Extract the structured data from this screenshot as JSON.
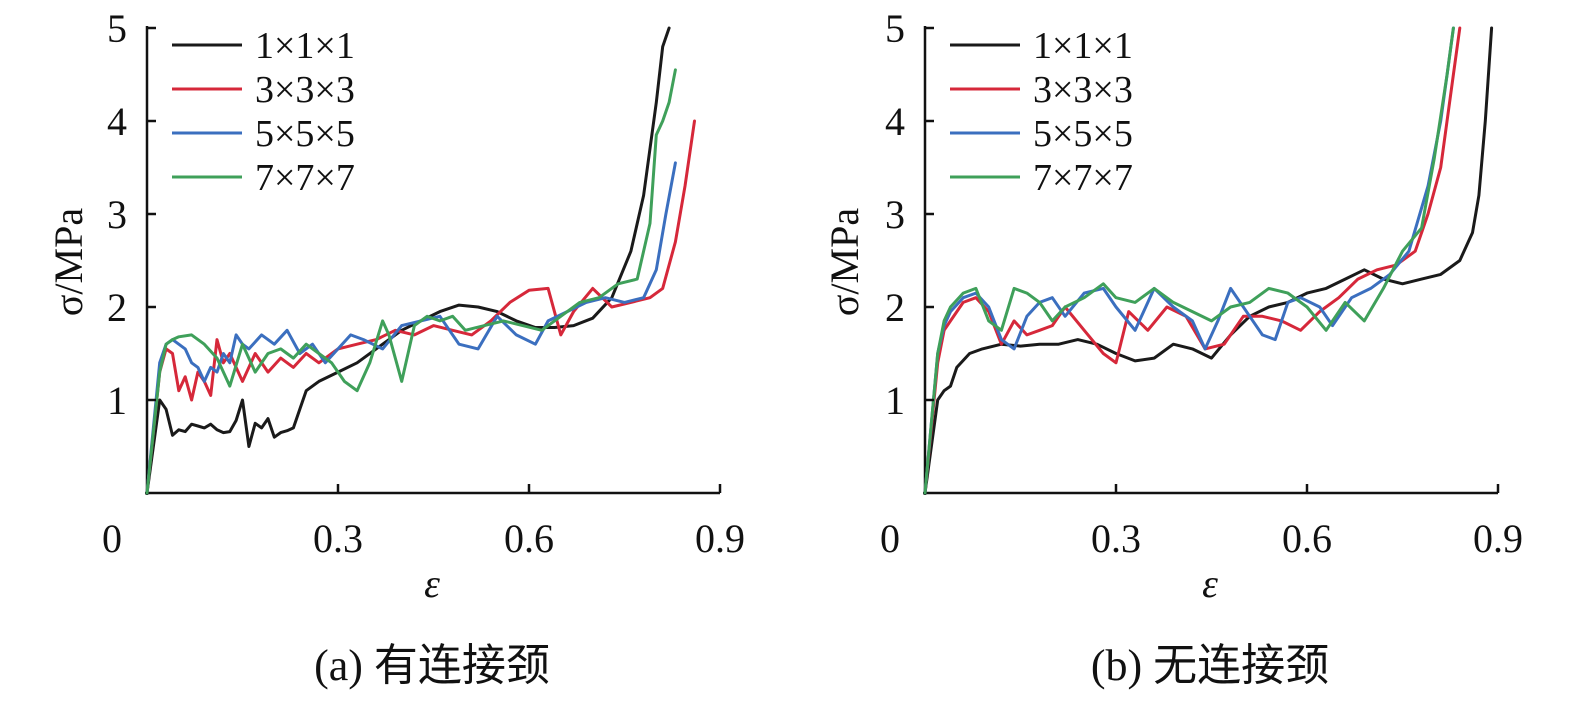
{
  "chart_data": [
    {
      "type": "line",
      "caption": "(a) 有连接颈",
      "xlabel": "ε",
      "ylabel": "σ/MPa",
      "xlim": [
        0,
        0.9
      ],
      "ylim": [
        0,
        5
      ],
      "x_ticks": [
        "0",
        "0.3",
        "0.6",
        "0.9"
      ],
      "y_ticks": [
        "1",
        "2",
        "3",
        "4",
        "5"
      ],
      "legend_position": "top-left",
      "series": [
        {
          "name": "1×1×1",
          "color": "#1a1a1a",
          "x": [
            0,
            0.02,
            0.03,
            0.04,
            0.05,
            0.06,
            0.07,
            0.08,
            0.09,
            0.1,
            0.11,
            0.12,
            0.13,
            0.14,
            0.15,
            0.16,
            0.17,
            0.18,
            0.19,
            0.2,
            0.21,
            0.22,
            0.23,
            0.24,
            0.25,
            0.27,
            0.3,
            0.33,
            0.37,
            0.4,
            0.43,
            0.46,
            0.49,
            0.52,
            0.55,
            0.58,
            0.61,
            0.64,
            0.67,
            0.7,
            0.73,
            0.76,
            0.78,
            0.8,
            0.81,
            0.82
          ],
          "y": [
            0,
            1.0,
            0.9,
            0.62,
            0.68,
            0.66,
            0.74,
            0.72,
            0.7,
            0.74,
            0.68,
            0.65,
            0.66,
            0.78,
            1.0,
            0.5,
            0.75,
            0.7,
            0.8,
            0.6,
            0.65,
            0.67,
            0.7,
            0.9,
            1.1,
            1.2,
            1.3,
            1.4,
            1.6,
            1.75,
            1.85,
            1.95,
            2.02,
            2.0,
            1.95,
            1.85,
            1.78,
            1.78,
            1.8,
            1.88,
            2.1,
            2.6,
            3.2,
            4.2,
            4.8,
            5.0
          ]
        },
        {
          "name": "3×3×3",
          "color": "#d6283a",
          "x": [
            0,
            0.02,
            0.03,
            0.04,
            0.05,
            0.06,
            0.07,
            0.08,
            0.09,
            0.1,
            0.11,
            0.12,
            0.13,
            0.14,
            0.15,
            0.17,
            0.19,
            0.21,
            0.23,
            0.25,
            0.27,
            0.3,
            0.33,
            0.36,
            0.39,
            0.42,
            0.45,
            0.48,
            0.51,
            0.54,
            0.57,
            0.6,
            0.63,
            0.65,
            0.67,
            0.7,
            0.73,
            0.76,
            0.79,
            0.81,
            0.83,
            0.845,
            0.86
          ],
          "y": [
            0,
            1.3,
            1.55,
            1.5,
            1.1,
            1.25,
            1.0,
            1.3,
            1.2,
            1.05,
            1.65,
            1.4,
            1.5,
            1.35,
            1.2,
            1.5,
            1.3,
            1.45,
            1.35,
            1.5,
            1.4,
            1.55,
            1.6,
            1.65,
            1.75,
            1.7,
            1.8,
            1.75,
            1.7,
            1.85,
            2.05,
            2.18,
            2.2,
            1.7,
            1.95,
            2.2,
            2.0,
            2.05,
            2.1,
            2.2,
            2.7,
            3.3,
            4.0
          ]
        },
        {
          "name": "5×5×5",
          "color": "#3b6fbf",
          "x": [
            0,
            0.02,
            0.03,
            0.04,
            0.05,
            0.06,
            0.07,
            0.08,
            0.09,
            0.1,
            0.11,
            0.12,
            0.13,
            0.14,
            0.15,
            0.16,
            0.18,
            0.2,
            0.22,
            0.24,
            0.26,
            0.28,
            0.3,
            0.32,
            0.34,
            0.37,
            0.4,
            0.43,
            0.46,
            0.49,
            0.52,
            0.55,
            0.58,
            0.61,
            0.63,
            0.66,
            0.69,
            0.72,
            0.75,
            0.78,
            0.8,
            0.815,
            0.83
          ],
          "y": [
            0,
            1.4,
            1.6,
            1.65,
            1.6,
            1.55,
            1.4,
            1.35,
            1.2,
            1.35,
            1.3,
            1.5,
            1.4,
            1.7,
            1.6,
            1.55,
            1.7,
            1.6,
            1.75,
            1.5,
            1.6,
            1.4,
            1.55,
            1.7,
            1.65,
            1.55,
            1.8,
            1.85,
            1.9,
            1.6,
            1.55,
            1.9,
            1.7,
            1.6,
            1.85,
            1.95,
            2.05,
            2.1,
            2.05,
            2.1,
            2.4,
            3.0,
            3.55
          ]
        },
        {
          "name": "7×7×7",
          "color": "#3fa05a",
          "x": [
            0,
            0.02,
            0.03,
            0.04,
            0.05,
            0.07,
            0.09,
            0.11,
            0.13,
            0.15,
            0.17,
            0.19,
            0.21,
            0.23,
            0.25,
            0.27,
            0.29,
            0.31,
            0.33,
            0.35,
            0.37,
            0.38,
            0.4,
            0.42,
            0.44,
            0.46,
            0.48,
            0.5,
            0.53,
            0.56,
            0.59,
            0.62,
            0.65,
            0.68,
            0.71,
            0.74,
            0.77,
            0.79,
            0.8,
            0.81,
            0.82,
            0.83
          ],
          "y": [
            0,
            1.3,
            1.6,
            1.65,
            1.68,
            1.7,
            1.6,
            1.45,
            1.15,
            1.6,
            1.3,
            1.5,
            1.55,
            1.45,
            1.6,
            1.5,
            1.4,
            1.2,
            1.1,
            1.4,
            1.85,
            1.7,
            1.2,
            1.8,
            1.9,
            1.85,
            1.9,
            1.75,
            1.8,
            1.85,
            1.8,
            1.75,
            1.9,
            2.05,
            2.1,
            2.25,
            2.3,
            2.9,
            3.85,
            4.0,
            4.2,
            4.55
          ]
        }
      ]
    },
    {
      "type": "line",
      "caption": "(b) 无连接颈",
      "xlabel": "ε",
      "ylabel": "σ/MPa",
      "xlim": [
        0,
        0.9
      ],
      "ylim": [
        0,
        5
      ],
      "x_ticks": [
        "0",
        "0.3",
        "0.6",
        "0.9"
      ],
      "y_ticks": [
        "1",
        "2",
        "3",
        "4",
        "5"
      ],
      "legend_position": "top-left",
      "series": [
        {
          "name": "1×1×1",
          "color": "#1a1a1a",
          "x": [
            0,
            0.02,
            0.03,
            0.04,
            0.05,
            0.07,
            0.09,
            0.12,
            0.15,
            0.18,
            0.21,
            0.24,
            0.27,
            0.3,
            0.33,
            0.36,
            0.39,
            0.42,
            0.45,
            0.48,
            0.51,
            0.54,
            0.57,
            0.6,
            0.63,
            0.66,
            0.69,
            0.72,
            0.75,
            0.78,
            0.81,
            0.84,
            0.86,
            0.87,
            0.88,
            0.89
          ],
          "y": [
            0,
            1.0,
            1.1,
            1.15,
            1.35,
            1.5,
            1.55,
            1.6,
            1.58,
            1.6,
            1.6,
            1.65,
            1.6,
            1.5,
            1.42,
            1.45,
            1.6,
            1.55,
            1.45,
            1.7,
            1.9,
            2.0,
            2.05,
            2.15,
            2.2,
            2.3,
            2.4,
            2.3,
            2.25,
            2.3,
            2.35,
            2.5,
            2.8,
            3.2,
            4.0,
            5.0
          ]
        },
        {
          "name": "3×3×3",
          "color": "#d6283a",
          "x": [
            0,
            0.02,
            0.03,
            0.04,
            0.06,
            0.08,
            0.1,
            0.12,
            0.14,
            0.16,
            0.18,
            0.2,
            0.22,
            0.25,
            0.28,
            0.3,
            0.32,
            0.35,
            0.38,
            0.41,
            0.44,
            0.47,
            0.5,
            0.53,
            0.56,
            0.59,
            0.62,
            0.65,
            0.68,
            0.71,
            0.74,
            0.77,
            0.79,
            0.81,
            0.83,
            0.84
          ],
          "y": [
            0,
            1.4,
            1.75,
            1.85,
            2.05,
            2.1,
            1.95,
            1.6,
            1.85,
            1.7,
            1.75,
            1.8,
            2.0,
            1.75,
            1.5,
            1.4,
            1.95,
            1.75,
            2.0,
            1.9,
            1.55,
            1.6,
            1.9,
            1.9,
            1.85,
            1.75,
            1.95,
            2.1,
            2.3,
            2.4,
            2.45,
            2.6,
            3.0,
            3.5,
            4.5,
            5.0
          ]
        },
        {
          "name": "5×5×5",
          "color": "#3b6fbf",
          "x": [
            0,
            0.02,
            0.03,
            0.04,
            0.06,
            0.08,
            0.1,
            0.12,
            0.14,
            0.16,
            0.18,
            0.2,
            0.22,
            0.25,
            0.28,
            0.3,
            0.33,
            0.36,
            0.39,
            0.42,
            0.44,
            0.46,
            0.48,
            0.51,
            0.53,
            0.55,
            0.57,
            0.59,
            0.62,
            0.64,
            0.67,
            0.7,
            0.73,
            0.76,
            0.79,
            0.81,
            0.82,
            0.83
          ],
          "y": [
            0,
            1.5,
            1.8,
            1.95,
            2.1,
            2.15,
            2.0,
            1.65,
            1.55,
            1.9,
            2.05,
            2.1,
            1.9,
            2.15,
            2.2,
            2.0,
            1.75,
            2.2,
            2.0,
            1.85,
            1.55,
            1.85,
            2.2,
            1.9,
            1.7,
            1.65,
            2.05,
            2.1,
            2.0,
            1.8,
            2.1,
            2.2,
            2.35,
            2.6,
            3.3,
            4.0,
            4.5,
            5.0
          ]
        },
        {
          "name": "7×7×7",
          "color": "#3fa05a",
          "x": [
            0,
            0.02,
            0.03,
            0.04,
            0.06,
            0.08,
            0.1,
            0.12,
            0.14,
            0.16,
            0.18,
            0.2,
            0.22,
            0.25,
            0.28,
            0.3,
            0.33,
            0.36,
            0.39,
            0.42,
            0.45,
            0.48,
            0.51,
            0.54,
            0.57,
            0.6,
            0.63,
            0.66,
            0.69,
            0.72,
            0.75,
            0.78,
            0.8,
            0.82,
            0.83
          ],
          "y": [
            0,
            1.5,
            1.85,
            2.0,
            2.15,
            2.2,
            1.85,
            1.75,
            2.2,
            2.15,
            2.05,
            1.85,
            2.0,
            2.1,
            2.25,
            2.1,
            2.05,
            2.2,
            2.05,
            1.95,
            1.85,
            2.0,
            2.05,
            2.2,
            2.15,
            2.0,
            1.75,
            2.05,
            1.85,
            2.2,
            2.6,
            2.85,
            3.6,
            4.5,
            5.0
          ]
        }
      ]
    }
  ]
}
